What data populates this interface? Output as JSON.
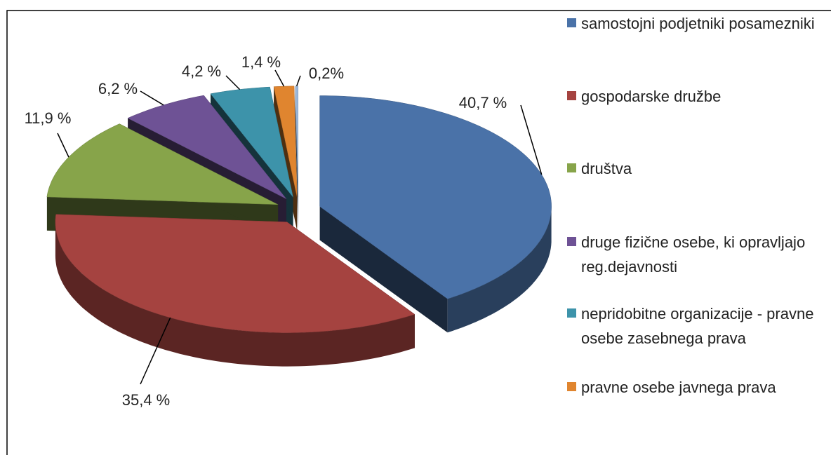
{
  "chart_data": {
    "type": "pie3d",
    "categories": [
      "samostojni podjetniki posamezniki",
      "gospodarske družbe",
      "društva",
      "druge fizične osebe, ki opravljajo reg.dejavnosti",
      "nepridobitne organizacije - pravne osebe zasebnega prava",
      "pravne osebe javnega prava",
      null
    ],
    "values": [
      40.7,
      35.4,
      11.9,
      6.2,
      4.2,
      1.4,
      0.2
    ],
    "value_labels": [
      "40,7 %",
      "35,4 %",
      "11,9 %",
      "6,2 %",
      "4,2 %",
      "1,4 %",
      "0,2%"
    ],
    "colors": [
      "#4a72a8",
      "#a54340",
      "#87a44a",
      "#6e5295",
      "#3d93aa",
      "#e0852f",
      "#9bb7d9"
    ],
    "legend": "right"
  }
}
